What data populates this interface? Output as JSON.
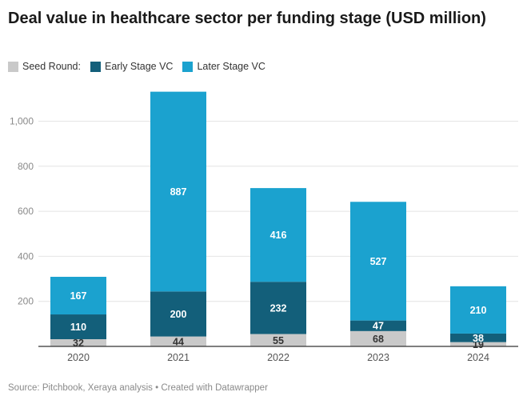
{
  "title": "Deal value in healthcare sector per funding stage (USD million)",
  "footer": "Source: Pitchbook, Xeraya analysis • Created with Datawrapper",
  "legend": [
    {
      "label": "Seed Round:",
      "color": "#c9c9c9"
    },
    {
      "label": "Early Stage VC",
      "color": "#135f7a"
    },
    {
      "label": "Later Stage VC",
      "color": "#1ba2cf"
    }
  ],
  "chart_data": {
    "type": "bar",
    "stacked": true,
    "categories": [
      "2020",
      "2021",
      "2022",
      "2023",
      "2024"
    ],
    "series": [
      {
        "name": "Seed Round:",
        "color": "#c9c9c9",
        "values": [
          32,
          44,
          55,
          68,
          19
        ]
      },
      {
        "name": "Early Stage VC",
        "color": "#135f7a",
        "values": [
          110,
          200,
          232,
          47,
          38
        ]
      },
      {
        "name": "Later Stage VC",
        "color": "#1ba2cf",
        "values": [
          167,
          887,
          416,
          527,
          210
        ]
      }
    ],
    "y_ticks": [
      200,
      400,
      600,
      800,
      1000
    ],
    "y_tick_labels": [
      "200",
      "400",
      "600",
      "800",
      "1,000"
    ],
    "ylim": [
      0,
      1140
    ],
    "grid": true,
    "legend_position": "top-left"
  }
}
